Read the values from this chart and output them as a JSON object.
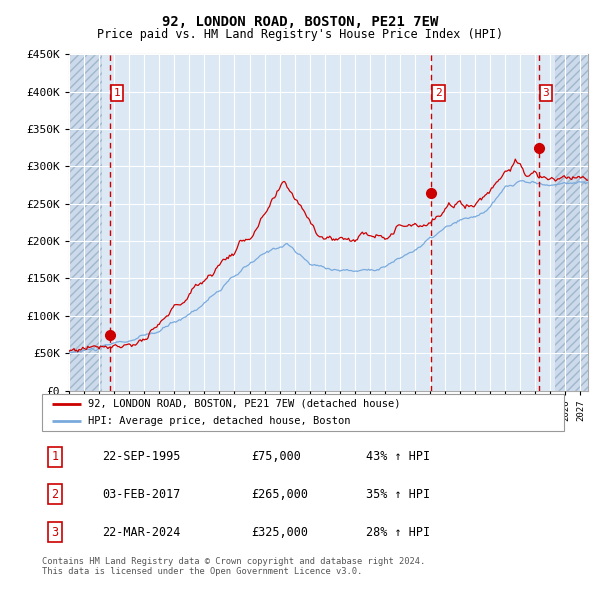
{
  "title": "92, LONDON ROAD, BOSTON, PE21 7EW",
  "subtitle": "Price paid vs. HM Land Registry's House Price Index (HPI)",
  "legend_label_red": "92, LONDON ROAD, BOSTON, PE21 7EW (detached house)",
  "legend_label_blue": "HPI: Average price, detached house, Boston",
  "footer": "Contains HM Land Registry data © Crown copyright and database right 2024.\nThis data is licensed under the Open Government Licence v3.0.",
  "purchases": [
    {
      "num": 1,
      "date": "22-SEP-1995",
      "price": 75000,
      "pct": "43% ↑ HPI",
      "x_year": 1995.73
    },
    {
      "num": 2,
      "date": "03-FEB-2017",
      "price": 265000,
      "pct": "35% ↑ HPI",
      "x_year": 2017.09
    },
    {
      "num": 3,
      "date": "22-MAR-2024",
      "price": 325000,
      "pct": "28% ↑ HPI",
      "x_year": 2024.22
    }
  ],
  "ylim": [
    0,
    450000
  ],
  "yticks": [
    0,
    50000,
    100000,
    150000,
    200000,
    250000,
    300000,
    350000,
    400000,
    450000
  ],
  "ytick_labels": [
    "£0",
    "£50K",
    "£100K",
    "£150K",
    "£200K",
    "£250K",
    "£300K",
    "£350K",
    "£400K",
    "£450K"
  ],
  "xlim_start": 1993.0,
  "xlim_end": 2027.5,
  "hatch_left_end": 1995.2,
  "hatch_right_start": 2025.3,
  "red_color": "#cc0000",
  "blue_color": "#7aaadd",
  "bg_color": "#dce9f5",
  "grid_color": "#ffffff",
  "purchase_marker_color": "#cc0000",
  "vline_color": "#cc0000"
}
